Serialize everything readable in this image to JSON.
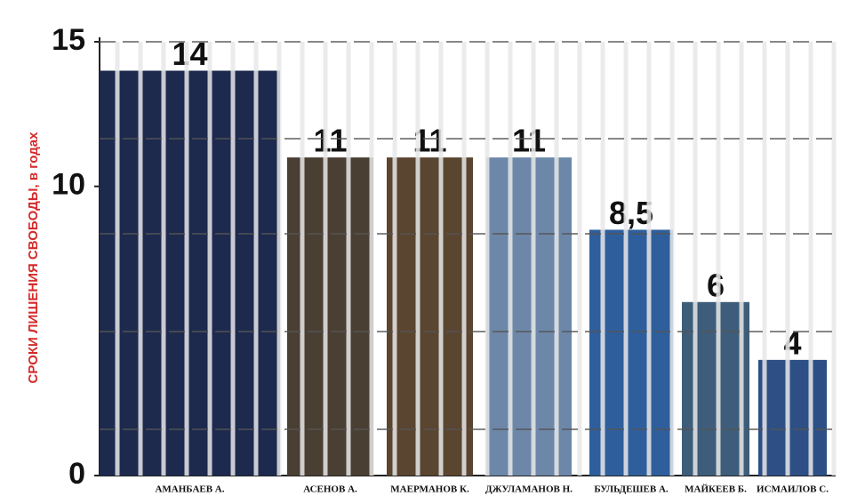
{
  "chart_data": {
    "type": "bar",
    "y_label": "СРОКИ ЛИШЕНИЯ СВОБОДЫ, в годах",
    "categories": [
      "АМАНБАЕВ А.",
      "АСЕНОВ А.",
      "МАЕРМАНОВ К.",
      "ДЖУЛАМАНОВ Н.",
      "БУЛЬДЕШЕВ А.",
      "МАЙКЕЕВ Б.",
      "ИСМАИЛОВ С."
    ],
    "values": [
      14,
      11,
      11,
      11,
      8.5,
      6,
      4
    ],
    "value_labels": [
      "14",
      "11",
      "11",
      "11",
      "8,5",
      "6",
      "4"
    ],
    "colors": [
      "#1d2a4e",
      "#4a3f33",
      "#5a4530",
      "#6d87a8",
      "#2e5f9c",
      "#3d5d7a",
      "#2d4f85"
    ],
    "ylim": [
      0,
      15
    ],
    "yticks": [
      0,
      10,
      15
    ],
    "grid": true
  }
}
